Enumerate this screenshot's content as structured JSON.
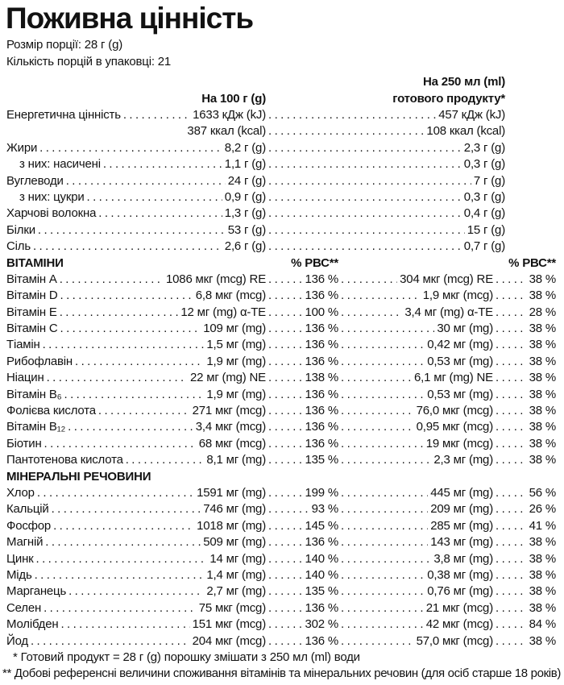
{
  "title": "Поживна цінність",
  "serving_info": {
    "serving_size": "Розмір порції: 28 г (g)",
    "servings_per_pack": "Кількість порцій в упаковці: 21"
  },
  "columns": {
    "per_100g": "На 100 г (g)",
    "per_250ml_line1": "На 250 мл (ml)",
    "per_250ml_line2": "готового продукту*"
  },
  "macro_rows": [
    {
      "label": "Енергетична цінність",
      "v1": "1633 кДж (kJ)",
      "v2": "457 кДж (kJ)"
    },
    {
      "label": "",
      "v1": "387 ккал (kcal)",
      "v2": "108 ккал (kcal)",
      "no_leader": true
    },
    {
      "label": "Жири",
      "v1": "8,2 г (g)",
      "v2": "2,3 г (g)"
    },
    {
      "label": "з них: насичені",
      "v1": "1,1 г (g)",
      "v2": "0,3 г (g)",
      "indent": true
    },
    {
      "label": "Вуглеводи",
      "v1": "24 г (g)",
      "v2": "7 г (g)"
    },
    {
      "label": "з них: цукри",
      "v1": "0,9 г (g)",
      "v2": "0,3 г (g)",
      "indent": true
    },
    {
      "label": "Харчові волокна",
      "v1": "1,3 г (g)",
      "v2": "0,4 г (g)"
    },
    {
      "label": "Білки",
      "v1": "53 г (g)",
      "v2": "15 г (g)"
    },
    {
      "label": "Сіль",
      "v1": "2,6 г (g)",
      "v2": "0,7 г (g)"
    }
  ],
  "vitamins": {
    "header": "ВІТАМІНИ",
    "pvc_header": "% РВС**",
    "rows": [
      {
        "label": "Вітамін A",
        "v1": "1086 мкг (mcg) RE",
        "p1": "136 %",
        "v2": "304 мкг (mcg) RE",
        "p2": "38 %"
      },
      {
        "label": "Вітамін D",
        "v1": "6,8 мкг (mcg)",
        "p1": "136 %",
        "v2": "1,9 мкг (mcg)",
        "p2": "38 %"
      },
      {
        "label": "Вітамін E",
        "v1": "12 мг (mg) α-TE",
        "p1": "100 %",
        "v2": "3,4 мг (mg) α-TE",
        "p2": "28 %"
      },
      {
        "label": "Вітамін C",
        "v1": "109 мг (mg)",
        "p1": "136 %",
        "v2": "30 мг (mg)",
        "p2": "38 %"
      },
      {
        "label": "Тіамін",
        "v1": "1,5 мг (mg)",
        "p1": "136 %",
        "v2": "0,42 мг (mg)",
        "p2": "38 %"
      },
      {
        "label": "Рибофлавін",
        "v1": "1,9 мг (mg)",
        "p1": "136 %",
        "v2": "0,53 мг (mg)",
        "p2": "38 %"
      },
      {
        "label": "Ніацин",
        "v1": "22 мг (mg) NE",
        "p1": "138 %",
        "v2": "6,1 мг (mg) NE",
        "p2": "38 %"
      },
      {
        "label": "Вітамін B₆",
        "v1": "1,9 мг (mg)",
        "p1": "136 %",
        "v2": "0,53 мг (mg)",
        "p2": "38 %"
      },
      {
        "label": "Фолієва кислота",
        "v1": "271 мкг (mcg)",
        "p1": "136 %",
        "v2": "76,0 мкг (mcg)",
        "p2": "38 %"
      },
      {
        "label": "Вітамін B₁₂",
        "v1": "3,4 мкг (mcg)",
        "p1": "136 %",
        "v2": "0,95 мкг (mcg)",
        "p2": "38 %"
      },
      {
        "label": "Біотин",
        "v1": "68 мкг (mcg)",
        "p1": "136 %",
        "v2": "19 мкг (mcg)",
        "p2": "38 %"
      },
      {
        "label": "Пантотенова кислота",
        "v1": "8,1 мг (mg)",
        "p1": "135 %",
        "v2": "2,3 мг (mg)",
        "p2": "38 %"
      }
    ]
  },
  "minerals": {
    "header": "МІНЕРАЛЬНІ РЕЧОВИНИ",
    "rows": [
      {
        "label": "Хлор",
        "v1": "1591 мг (mg)",
        "p1": "199 %",
        "v2": "445 мг (mg)",
        "p2": "56 %"
      },
      {
        "label": "Кальцій",
        "v1": "746 мг (mg)",
        "p1": "93 %",
        "v2": "209 мг (mg)",
        "p2": "26 %"
      },
      {
        "label": "Фосфор",
        "v1": "1018 мг (mg)",
        "p1": "145 %",
        "v2": "285 мг (mg)",
        "p2": "41 %"
      },
      {
        "label": "Магній",
        "v1": "509 мг (mg)",
        "p1": "136 %",
        "v2": "143 мг (mg)",
        "p2": "38 %"
      },
      {
        "label": "Цинк",
        "v1": "14 мг (mg)",
        "p1": "140 %",
        "v2": "3,8 мг (mg)",
        "p2": "38 %"
      },
      {
        "label": "Мідь",
        "v1": "1,4 мг (mg)",
        "p1": "140 %",
        "v2": "0,38 мг (mg)",
        "p2": "38 %"
      },
      {
        "label": "Марганець",
        "v1": "2,7 мг (mg)",
        "p1": "135 %",
        "v2": "0,76 мг (mg)",
        "p2": "38 %"
      },
      {
        "label": "Селен",
        "v1": "75 мкг (mcg)",
        "p1": "136 %",
        "v2": "21 мкг (mcg)",
        "p2": "38 %"
      },
      {
        "label": "Молібден",
        "v1": "151 мкг (mcg)",
        "p1": "302 %",
        "v2": "42 мкг (mcg)",
        "p2": "84 %"
      },
      {
        "label": "Йод",
        "v1": "204 мкг (mcg)",
        "p1": "136 %",
        "v2": "57,0 мкг (mcg)",
        "p2": "38 %"
      }
    ]
  },
  "footnotes": [
    "* Готовий продукт = 28 г (g) порошку змішати з 250 мл (ml) води",
    "** Добові референсні величини споживання вітамінів та мінеральних речовин (для осіб старше 18 років)"
  ]
}
